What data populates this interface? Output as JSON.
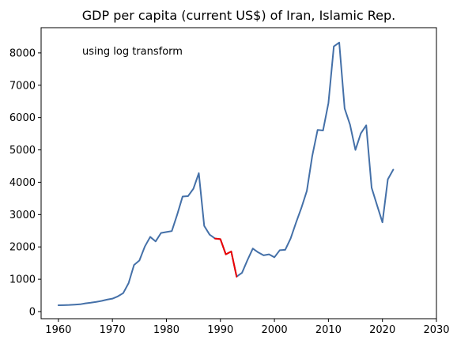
{
  "chart_data": {
    "type": "line",
    "title": "GDP per capita (current US$) of Iran, Islamic Rep.",
    "annotation": "using log transform",
    "xlabel": "",
    "ylabel": "",
    "xlim": [
      1956.8,
      2030
    ],
    "ylim": [
      -220,
      8780
    ],
    "xticks": [
      1960,
      1970,
      1980,
      1990,
      2000,
      2010,
      2020,
      2030
    ],
    "yticks": [
      0,
      1000,
      2000,
      3000,
      4000,
      5000,
      6000,
      7000,
      8000
    ],
    "grid": false,
    "legend": "none",
    "colors": {
      "line": "#4470a8",
      "highlight": "#ee0000",
      "axis": "#000000",
      "background": "#ffffff"
    },
    "highlight_range": [
      1989,
      1993
    ],
    "series": [
      {
        "x": [
          1960,
          1961,
          1962,
          1963,
          1964,
          1965,
          1966,
          1967,
          1968,
          1969,
          1970,
          1971,
          1972,
          1973,
          1974,
          1975,
          1976,
          1977,
          1978,
          1979,
          1980,
          1981,
          1982,
          1983,
          1984,
          1985,
          1986,
          1987,
          1988,
          1989,
          1990,
          1991,
          1992,
          1993,
          1994,
          1995,
          1996,
          1997,
          1998,
          1999,
          2000,
          2001,
          2002,
          2003,
          2004,
          2005,
          2006,
          2007,
          2008,
          2009,
          2010,
          2011,
          2012,
          2013,
          2014,
          2015,
          2016,
          2017,
          2018,
          2019,
          2020,
          2021,
          2022
        ],
        "values": [
          195,
          200,
          205,
          215,
          225,
          255,
          275,
          300,
          330,
          370,
          400,
          470,
          570,
          880,
          1440,
          1580,
          2010,
          2310,
          2170,
          2430,
          2460,
          2490,
          3000,
          3560,
          3570,
          3800,
          4280,
          2650,
          2380,
          2260,
          2240,
          1770,
          1860,
          1080,
          1200,
          1590,
          1950,
          1830,
          1740,
          1770,
          1680,
          1900,
          1910,
          2260,
          2750,
          3210,
          3730,
          4810,
          5620,
          5600,
          6450,
          8200,
          8320,
          6280,
          5780,
          5000,
          5510,
          5760,
          3830,
          3290,
          2760,
          4090,
          4390
        ]
      }
    ]
  }
}
